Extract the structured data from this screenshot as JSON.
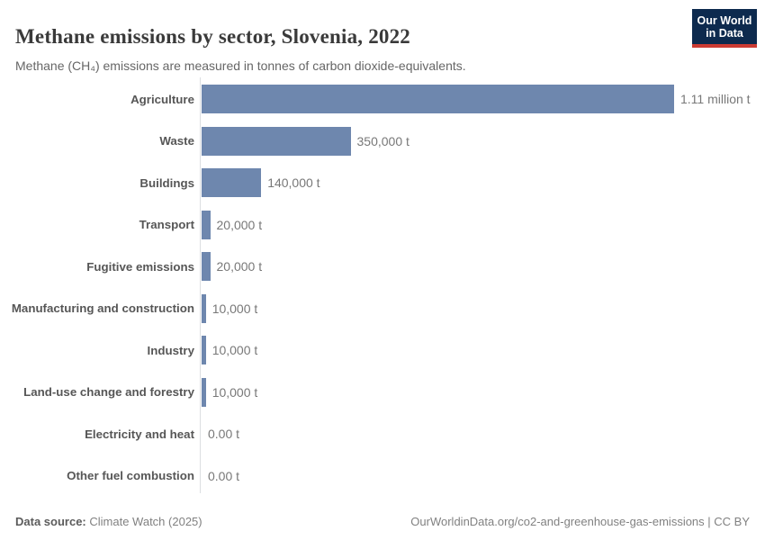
{
  "header": {
    "title": "Methane emissions by sector, Slovenia, 2022",
    "subtitle": "Methane (CH₄) emissions are measured in tonnes of carbon dioxide-equivalents."
  },
  "logo": {
    "line1": "Our World",
    "line2": "in Data"
  },
  "chart_data": {
    "type": "bar",
    "orientation": "horizontal",
    "title": "Methane emissions by sector, Slovenia, 2022",
    "unit": "t",
    "xlim": [
      0,
      1110000
    ],
    "grid": false,
    "legend": false,
    "bar_color": "#6e87ae",
    "categories": [
      "Agriculture",
      "Waste",
      "Buildings",
      "Transport",
      "Fugitive emissions",
      "Manufacturing and construction",
      "Industry",
      "Land-use change and forestry",
      "Electricity and heat",
      "Other fuel combustion"
    ],
    "values": [
      1110000,
      350000,
      140000,
      20000,
      20000,
      10000,
      10000,
      10000,
      0,
      0
    ],
    "value_labels": [
      "1.11 million t",
      "350,000 t",
      "140,000 t",
      "20,000 t",
      "20,000 t",
      "10,000 t",
      "10,000 t",
      "10,000 t",
      "0.00 t",
      "0.00 t"
    ]
  },
  "footer": {
    "datasource_label": "Data source:",
    "datasource_value": "Climate Watch (2025)",
    "right_text": "OurWorldinData.org/co2-and-greenhouse-gas-emissions | CC BY"
  },
  "colors": {
    "bar": "#6e87ae",
    "logo_background": "#0d2a4e",
    "logo_accent": "#cc3b33",
    "axis_line": "#dcdfe2"
  }
}
